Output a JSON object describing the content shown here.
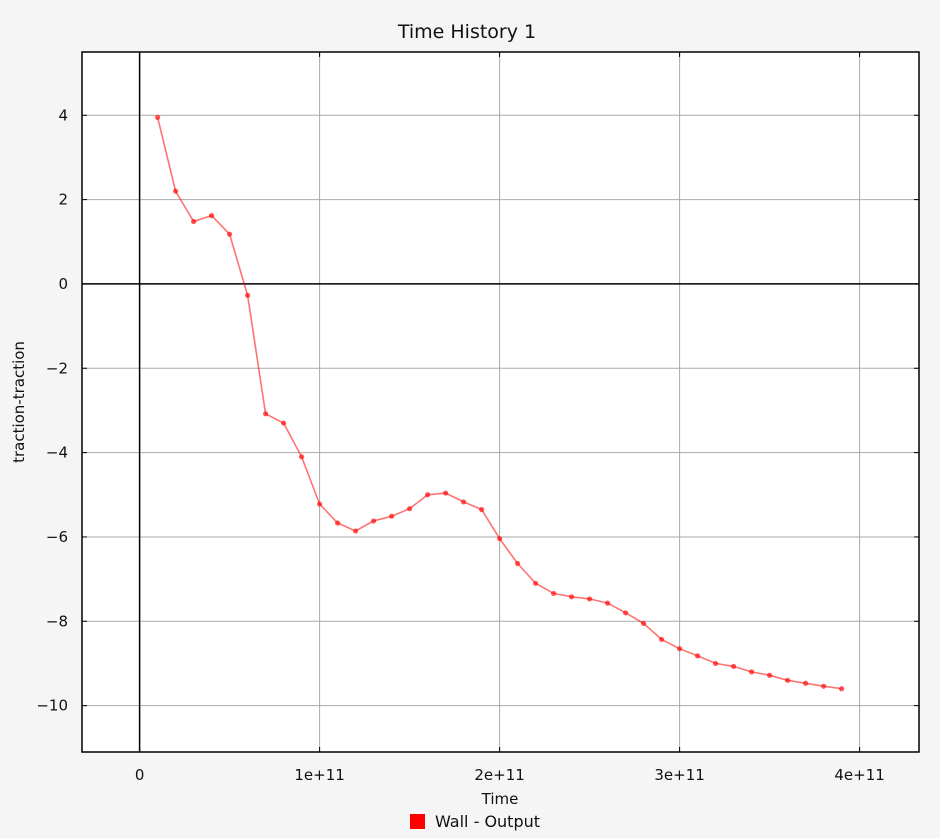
{
  "chart_data": {
    "type": "line",
    "title": "Time History 1",
    "xlabel": "Time",
    "ylabel": "traction-traction",
    "xlim": [
      -32000000000,
      433000000000
    ],
    "ylim": [
      -11.1,
      5.5
    ],
    "x_ticks": [
      0,
      100000000000,
      200000000000,
      300000000000,
      400000000000
    ],
    "x_tick_labels": [
      "0",
      "1e+11",
      "2e+11",
      "3e+11",
      "4e+11"
    ],
    "y_ticks": [
      4,
      2,
      0,
      -2,
      -4,
      -6,
      -8,
      -10
    ],
    "y_tick_labels": [
      "4",
      "2",
      "0",
      "−2",
      "−4",
      "−6",
      "−8",
      "−10"
    ],
    "grid": true,
    "legend_position": "bottom-center",
    "series": [
      {
        "name": "Wall - Output",
        "color": "#ff0000",
        "x": [
          10000000000,
          20000000000,
          30000000000,
          40000000000,
          50000000000,
          60000000000,
          70000000000,
          80000000000,
          90000000000,
          100000000000,
          110000000000,
          120000000000,
          130000000000,
          140000000000,
          150000000000,
          160000000000,
          170000000000,
          180000000000,
          190000000000,
          200000000000,
          210000000000,
          220000000000,
          230000000000,
          240000000000,
          250000000000,
          260000000000,
          270000000000,
          280000000000,
          290000000000,
          300000000000,
          310000000000,
          320000000000,
          330000000000,
          340000000000,
          350000000000,
          360000000000,
          370000000000,
          380000000000,
          390000000000
        ],
        "y": [
          3.95,
          2.2,
          1.48,
          1.62,
          1.18,
          -0.27,
          -3.08,
          -3.3,
          -4.1,
          -5.22,
          -5.67,
          -5.86,
          -5.62,
          -5.51,
          -5.33,
          -5.0,
          -4.96,
          -5.17,
          -5.35,
          -6.04,
          -6.63,
          -7.1,
          -7.34,
          -7.42,
          -7.47,
          -7.57,
          -7.8,
          -8.05,
          -8.43,
          -8.65,
          -8.82,
          -9.0,
          -9.07,
          -9.2,
          -9.28,
          -9.4,
          -9.47,
          -9.54,
          -9.6
        ]
      }
    ]
  }
}
